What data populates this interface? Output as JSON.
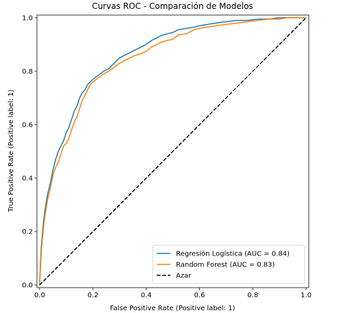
{
  "chart_data": {
    "type": "line",
    "title": "Curvas ROC - Comparación de Modelos",
    "xlabel": "False Positive Rate (Positive label: 1)",
    "ylabel": "True Positive Rate (Positive label: 1)",
    "xlim": [
      0,
      1
    ],
    "ylim": [
      0,
      1
    ],
    "xticks": [
      "0.0",
      "0.2",
      "0.4",
      "0.6",
      "0.8",
      "1.0"
    ],
    "yticks": [
      "0.0",
      "0.2",
      "0.4",
      "0.6",
      "0.8",
      "1.0"
    ],
    "grid": false,
    "legend_position": "lower-right",
    "series": [
      {
        "name": "Regresión Logística (AUC = 0.84)",
        "color": "#1f77b4",
        "style": "solid",
        "x": [
          0,
          0.003,
          0.006,
          0.01,
          0.015,
          0.02,
          0.025,
          0.03,
          0.04,
          0.05,
          0.06,
          0.07,
          0.08,
          0.09,
          0.1,
          0.11,
          0.12,
          0.13,
          0.14,
          0.15,
          0.16,
          0.17,
          0.18,
          0.19,
          0.2,
          0.22,
          0.24,
          0.26,
          0.28,
          0.3,
          0.32,
          0.34,
          0.36,
          0.38,
          0.4,
          0.42,
          0.44,
          0.46,
          0.48,
          0.5,
          0.52,
          0.55,
          0.58,
          0.6,
          0.63,
          0.66,
          0.7,
          0.74,
          0.78,
          0.82,
          0.86,
          0.9,
          0.93,
          0.96,
          1.0
        ],
        "y": [
          0,
          0.08,
          0.14,
          0.19,
          0.24,
          0.28,
          0.31,
          0.34,
          0.38,
          0.43,
          0.47,
          0.5,
          0.52,
          0.54,
          0.57,
          0.59,
          0.62,
          0.65,
          0.67,
          0.7,
          0.72,
          0.73,
          0.75,
          0.76,
          0.77,
          0.785,
          0.8,
          0.81,
          0.83,
          0.85,
          0.86,
          0.87,
          0.88,
          0.89,
          0.9,
          0.915,
          0.925,
          0.935,
          0.94,
          0.945,
          0.955,
          0.96,
          0.965,
          0.97,
          0.975,
          0.98,
          0.985,
          0.99,
          0.99,
          0.995,
          0.995,
          1.0,
          1.0,
          1.0,
          1.0
        ]
      },
      {
        "name": "Random Forest (AUC = 0.83)",
        "color": "#ff7f0e",
        "style": "solid",
        "x": [
          0,
          0.003,
          0.006,
          0.01,
          0.015,
          0.02,
          0.025,
          0.03,
          0.04,
          0.05,
          0.06,
          0.07,
          0.08,
          0.09,
          0.1,
          0.11,
          0.12,
          0.13,
          0.14,
          0.15,
          0.16,
          0.17,
          0.18,
          0.19,
          0.2,
          0.22,
          0.24,
          0.26,
          0.28,
          0.3,
          0.32,
          0.34,
          0.36,
          0.38,
          0.4,
          0.42,
          0.44,
          0.46,
          0.48,
          0.5,
          0.52,
          0.55,
          0.58,
          0.6,
          0.63,
          0.66,
          0.7,
          0.74,
          0.78,
          0.82,
          0.86,
          0.9,
          0.93,
          0.96,
          1.0
        ],
        "y": [
          0,
          0.06,
          0.12,
          0.17,
          0.22,
          0.26,
          0.29,
          0.32,
          0.36,
          0.41,
          0.44,
          0.46,
          0.49,
          0.52,
          0.53,
          0.55,
          0.58,
          0.61,
          0.63,
          0.66,
          0.69,
          0.71,
          0.73,
          0.75,
          0.76,
          0.775,
          0.79,
          0.8,
          0.815,
          0.83,
          0.84,
          0.85,
          0.86,
          0.865,
          0.875,
          0.89,
          0.9,
          0.91,
          0.915,
          0.92,
          0.935,
          0.94,
          0.955,
          0.96,
          0.965,
          0.97,
          0.975,
          0.98,
          0.985,
          0.99,
          0.995,
          0.995,
          1.0,
          1.0,
          1.0
        ]
      },
      {
        "name": "Azar",
        "color": "#000000",
        "style": "dashed",
        "x": [
          0,
          1
        ],
        "y": [
          0,
          1
        ]
      }
    ]
  }
}
